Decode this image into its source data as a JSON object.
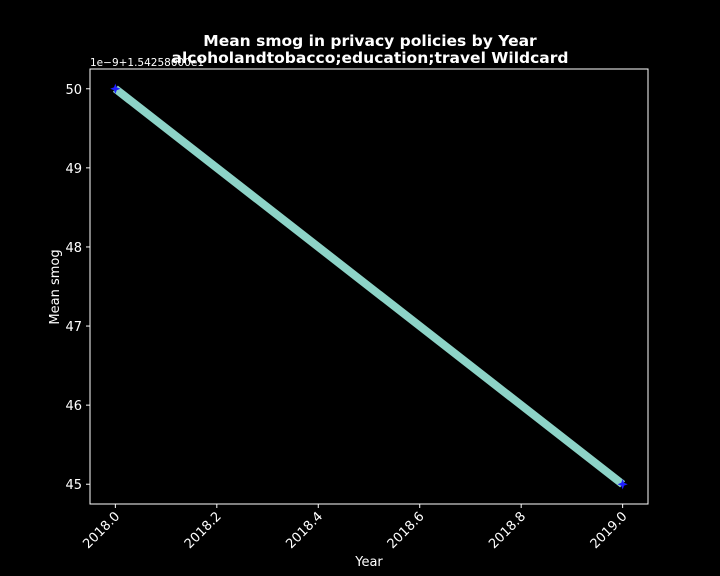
{
  "chart_data": {
    "type": "line",
    "title": [
      "Mean smog in privacy policies by Year",
      "alcoholandtobacco;education;travel Wildcard"
    ],
    "xlabel": "Year",
    "ylabel": "Mean smog",
    "y_offset_label": "1e−9+1.54258000e1",
    "x": [
      2018.0,
      2019.0
    ],
    "series": [
      {
        "values": [
          50,
          45
        ]
      }
    ],
    "xlim": [
      2017.95,
      2019.05
    ],
    "ylim": [
      44.75,
      50.25
    ],
    "xticks": [
      2018.0,
      2018.2,
      2018.4,
      2018.6,
      2018.8,
      2019.0
    ],
    "xtick_labels": [
      "2018.0",
      "2018.2",
      "2018.4",
      "2018.6",
      "2018.8",
      "2019.0"
    ],
    "yticks": [
      45,
      46,
      47,
      48,
      49,
      50
    ],
    "ytick_labels": [
      "45",
      "46",
      "47",
      "48",
      "49",
      "50"
    ],
    "grid": false,
    "colors": {
      "background": "#000000",
      "line": "#8dd3c7",
      "marker": "#1f1fff",
      "axes": "#ffffff",
      "text": "#ffffff"
    }
  }
}
